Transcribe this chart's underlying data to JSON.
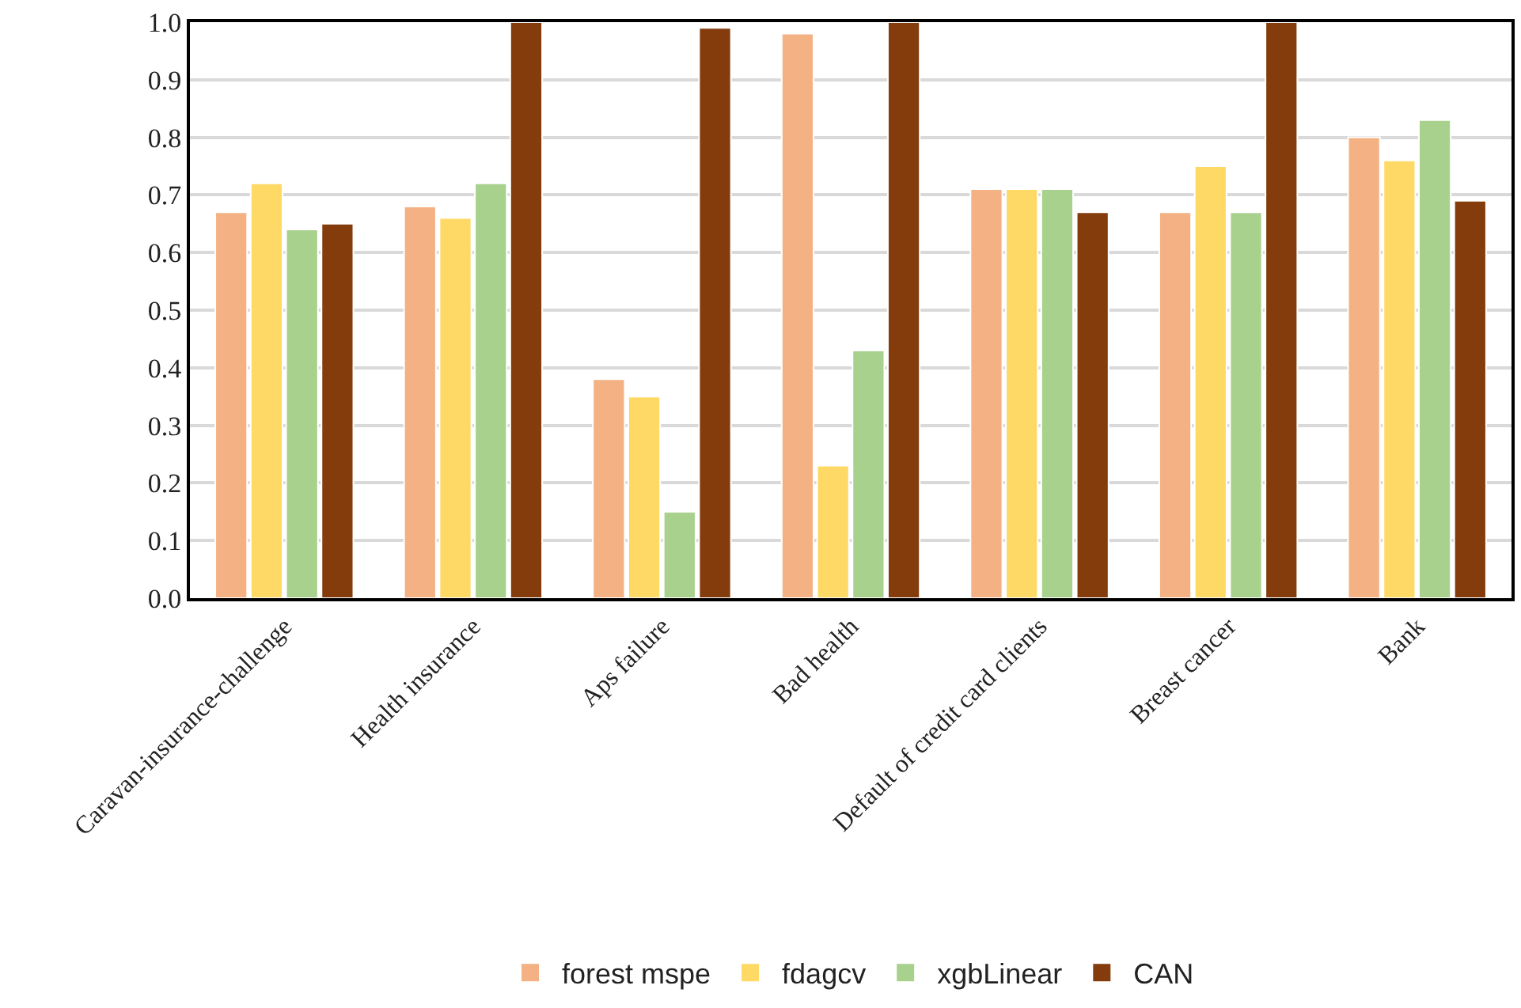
{
  "chart_data": {
    "type": "bar",
    "categories": [
      "Caravan-insurance-challenge",
      "Health insurance",
      "Aps failure",
      "Bad health",
      "Default of credit card clients",
      "Breast cancer",
      "Bank"
    ],
    "series": [
      {
        "name": "forest mspe",
        "color": "#f4b183",
        "values": [
          0.67,
          0.68,
          0.38,
          0.98,
          0.71,
          0.67,
          0.8
        ]
      },
      {
        "name": "fdagcv",
        "color": "#ffd966",
        "values": [
          0.72,
          0.66,
          0.35,
          0.23,
          0.71,
          0.75,
          0.76
        ]
      },
      {
        "name": "xgbLinear",
        "color": "#a9d18e",
        "values": [
          0.64,
          0.72,
          0.15,
          0.43,
          0.71,
          0.67,
          0.83
        ]
      },
      {
        "name": "CAN",
        "color": "#843c0c",
        "values": [
          0.65,
          1.0,
          0.99,
          1.0,
          0.67,
          1.0,
          0.69
        ]
      }
    ],
    "ylim": [
      0,
      1
    ],
    "yticks": [
      {
        "value": 0,
        "label": "0.0"
      },
      0.1,
      0.2,
      0.3,
      0.4,
      0.5,
      0.6,
      0.7,
      0.8,
      0.9,
      {
        "value": 1,
        "label": "1.0"
      }
    ],
    "grid": "y",
    "legend": "bottom"
  }
}
